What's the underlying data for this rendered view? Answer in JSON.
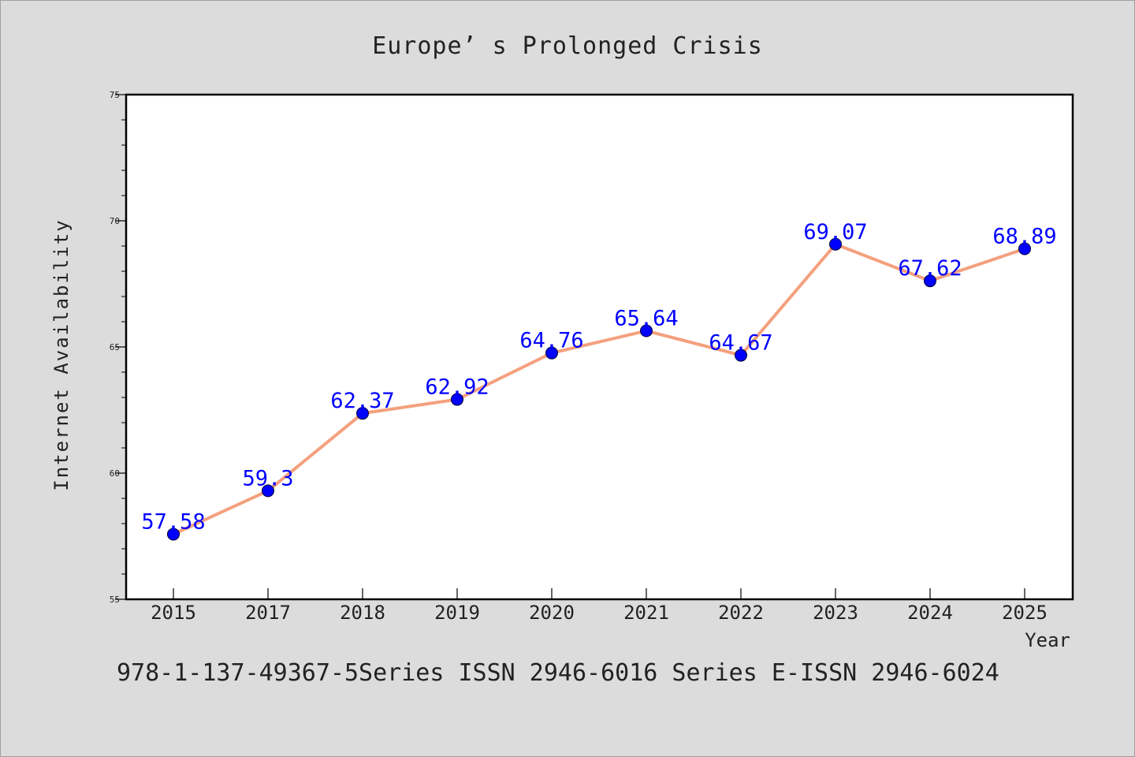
{
  "chart_data": {
    "type": "line",
    "title": "Europe’ s Prolonged Crisis",
    "xlabel": "Year",
    "ylabel": "Internet Availability",
    "categories": [
      "2015",
      "2017",
      "2018",
      "2019",
      "2020",
      "2021",
      "2022",
      "2023",
      "2024",
      "2025"
    ],
    "values": [
      57.58,
      59.3,
      62.37,
      62.92,
      64.76,
      65.64,
      64.67,
      69.07,
      67.62,
      68.89
    ],
    "data_labels": [
      "57.58",
      "59.3",
      "62.37",
      "62.92",
      "64.76",
      "65.64",
      "64.67",
      "69.07",
      "67.62",
      "68.89"
    ],
    "ylim": [
      55,
      75
    ],
    "yticks": [
      "55",
      "60",
      "65",
      "70",
      "75"
    ],
    "grid": false,
    "line_color": "#f4a07e",
    "marker_color": "#0000ff",
    "label_color": "#0000ff"
  },
  "footnote": "978-1-137-49367-5Series ISSN 2946-6016 Series E-ISSN 2946-6024"
}
